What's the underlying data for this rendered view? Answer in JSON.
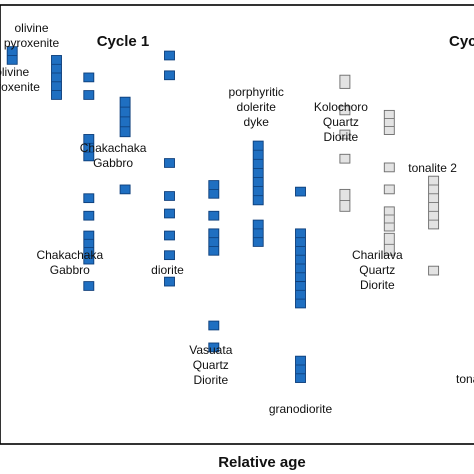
{
  "chart_data": {
    "type": "scatter",
    "xlabel": "Relative age",
    "ylabel": "",
    "grid": false,
    "legend": "none",
    "colors": {
      "blue": "#1f6fc1",
      "blue_stroke": "#0d3e7a",
      "gray": "#e3e3e3",
      "gray_stroke": "#6a6a6a"
    },
    "annotations": [
      {
        "text": "Cycle 1",
        "x": 3.85,
        "y": 92
      },
      {
        "text": "Cyc",
        "x": 13.35,
        "y": 92
      }
    ],
    "series": [
      {
        "label": [
          "olivine",
          "pyroxenite"
        ],
        "x": 0.5,
        "color": "blue",
        "boxes": [
          [
            86.5,
            90.5
          ]
        ]
      },
      {
        "label": [
          "olivine",
          "pyroxenite"
        ],
        "x": 1.6,
        "color": "blue",
        "boxes": [
          [
            78.5,
            88.5
          ]
        ]
      },
      {
        "label": [
          "Chakachaka",
          "Gabbro"
        ],
        "x": 2.4,
        "color": "blue",
        "boxes": [
          [
            82.5,
            84.5
          ],
          [
            78.5,
            80.5
          ],
          [
            64.5,
            70.5
          ],
          [
            55,
            57
          ],
          [
            51,
            53
          ],
          [
            41,
            48.5
          ],
          [
            35,
            37
          ]
        ]
      },
      {
        "label": [
          "Chakachaka",
          "Gabbro"
        ],
        "x": 3.3,
        "color": "blue",
        "boxes": [
          [
            70,
            79
          ],
          [
            57,
            59
          ]
        ]
      },
      {
        "label": [
          "diorite"
        ],
        "x": 4.4,
        "color": "blue",
        "boxes": [
          [
            87.5,
            89.5
          ],
          [
            83,
            85
          ],
          [
            63,
            65
          ],
          [
            55.5,
            57.5
          ],
          [
            51.5,
            53.5
          ],
          [
            46.5,
            48.5
          ],
          [
            42,
            44
          ],
          [
            36,
            38
          ]
        ]
      },
      {
        "label": [
          "Vasuata",
          "Quartz",
          "Diorite"
        ],
        "x": 5.5,
        "color": "blue",
        "boxes": [
          [
            56,
            60
          ],
          [
            51,
            53
          ],
          [
            43,
            49
          ],
          [
            26,
            28
          ],
          [
            21,
            23
          ]
        ]
      },
      {
        "label": [
          "porphyritic",
          "dolerite",
          "dyke"
        ],
        "x": 6.6,
        "color": "blue",
        "boxes": [
          [
            54.5,
            69
          ],
          [
            45,
            51
          ]
        ]
      },
      {
        "label": [
          "granodiorite"
        ],
        "x": 7.65,
        "color": "blue",
        "boxes": [
          [
            56.5,
            58.5
          ],
          [
            37,
            49
          ],
          [
            31,
            37
          ],
          [
            14,
            20
          ]
        ]
      },
      {
        "label": [
          "Kolochoro",
          "Quartz",
          "Diorite"
        ],
        "x": 8.75,
        "color": "gray",
        "boxes": [
          [
            81,
            84
          ],
          [
            75,
            77
          ],
          [
            69.5,
            71.5
          ],
          [
            64,
            66
          ],
          [
            53,
            58
          ]
        ]
      },
      {
        "label": [
          "Charilava",
          "Quartz",
          "Diorite"
        ],
        "x": 9.85,
        "color": "gray",
        "boxes": [
          [
            70.5,
            76
          ],
          [
            62,
            64
          ],
          [
            57,
            59
          ],
          [
            48.5,
            54
          ],
          [
            43,
            48
          ]
        ]
      },
      {
        "label": [
          "tonalite 2"
        ],
        "x": 10.95,
        "color": "gray",
        "boxes": [
          [
            49,
            61
          ],
          [
            38.5,
            40.5
          ]
        ]
      }
    ],
    "xlim": [
      0,
      12.1
    ],
    "ylim": [
      0,
      100
    ]
  },
  "page": {
    "xlabel": "Relative age",
    "cycle1": "Cycle 1",
    "cycle2_partial": "Cyc",
    "right_partial": "tona"
  }
}
